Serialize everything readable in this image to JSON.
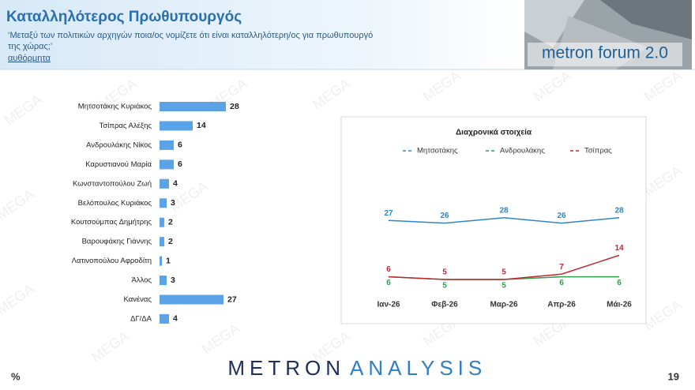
{
  "header": {
    "title": "Καταλληλότερος Πρωθυπουργός",
    "subtitle_lines": [
      "‘Μεταξύ των πολιτικών αρχηγών ποια/ος νομίζετε ότι είναι καταλληλότερη/ος για πρωθυπουργό",
      "της χώρας;’"
    ],
    "note": "αυθόρμητα",
    "banner": "metron forum 2.0"
  },
  "watermark": "MEGA",
  "chart_data": [
    {
      "type": "bar",
      "orientation": "horizontal",
      "color": "#5ba3e6",
      "categories": [
        "Μητσοτάκης Κυριάκος",
        "Τσίπρας Αλέξης",
        "Ανδρουλάκης Νίκος",
        "Καρυστιανού Μαρία",
        "Κωνσταντοπούλου Ζωή",
        "Βελόπουλος Κυριάκος",
        "Κουτσούμπας Δημήτρης",
        "Βαρουφάκης Γιάννης",
        "Λατινοπούλου Αφροδίτη",
        "Άλλος",
        "Κανένας",
        "ΔΓ/ΔΑ"
      ],
      "values": [
        28,
        14,
        6,
        6,
        4,
        3,
        2,
        2,
        1,
        3,
        27,
        4
      ]
    },
    {
      "type": "line",
      "title": "Διαχρονικά στοιχεία",
      "categories": [
        "Ιαν-26",
        "Φεβ-26",
        "Μαρ-26",
        "Απρ-26",
        "Μάι-26"
      ],
      "series": [
        {
          "name": "Μητσοτάκης",
          "color": "#2e86c8",
          "values": [
            27,
            26,
            28,
            26,
            28
          ]
        },
        {
          "name": "Ανδρουλάκης",
          "color": "#2e9e4e",
          "values": [
            6,
            5,
            5,
            6,
            6
          ]
        },
        {
          "name": "Τσίπρας",
          "color": "#c0282d",
          "values": [
            6,
            5,
            5,
            7,
            14
          ]
        }
      ]
    }
  ],
  "footer": {
    "unit": "%",
    "logo_left": "METRON",
    "logo_right": "ANALYSIS",
    "page": "19"
  }
}
